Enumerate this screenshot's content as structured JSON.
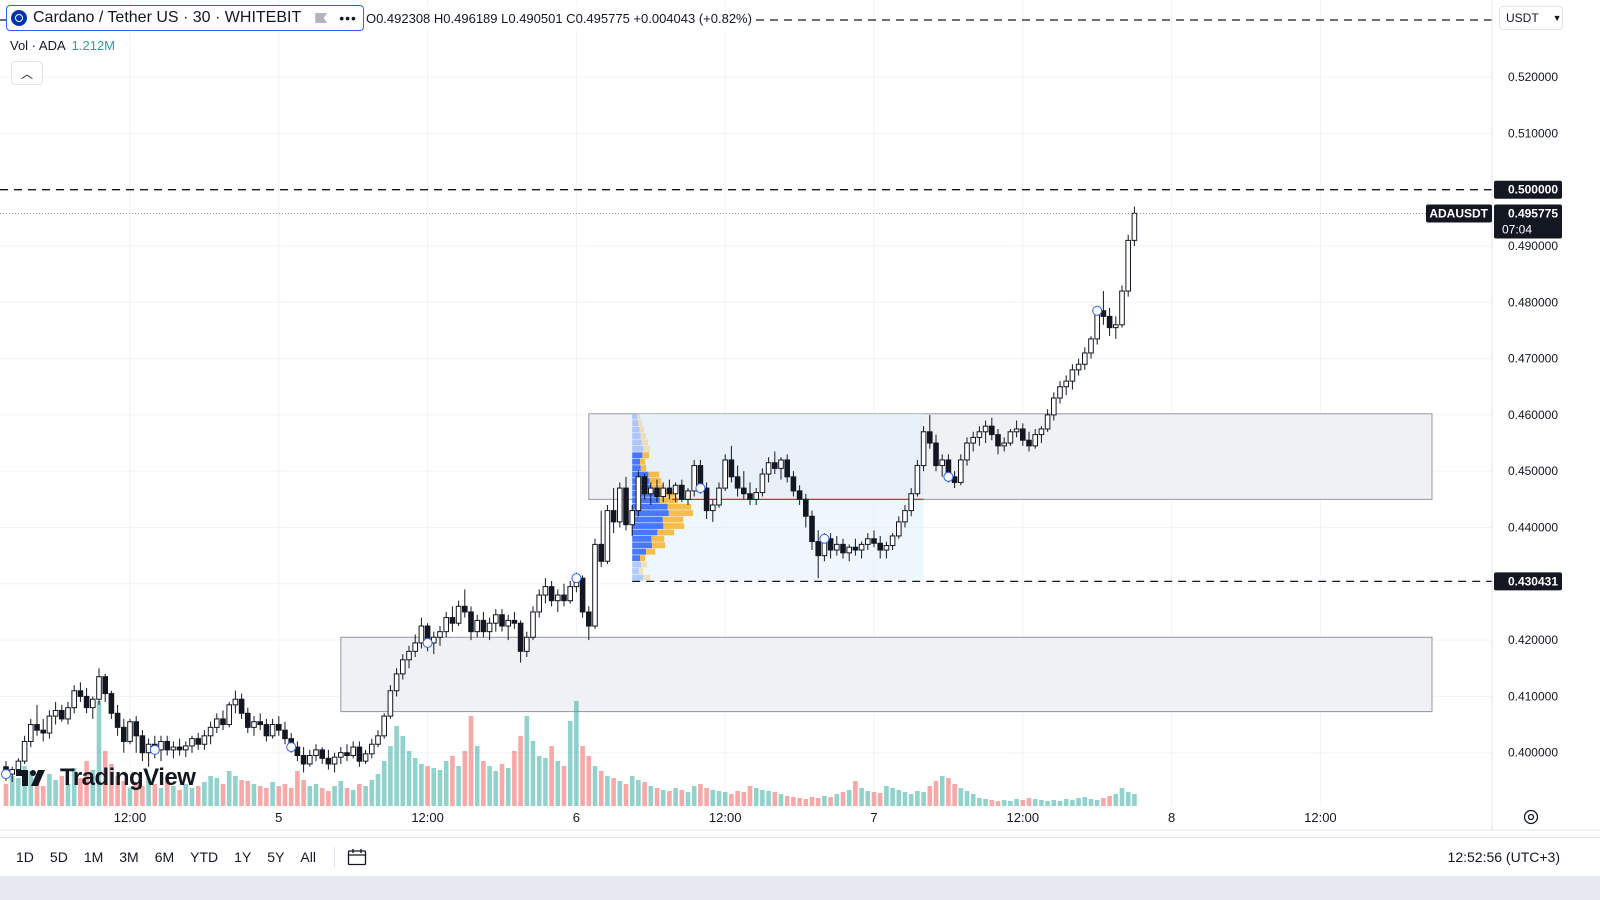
{
  "header": {
    "title": "Cardano / Tether US · 30 · WHITEBIT",
    "ohlc": "O0.492308 H0.496189 L0.490501 C0.495775 +0.004043 (+0.82%)",
    "vol_label": "Vol · ADA",
    "vol_value": "1.212M",
    "currency": "USDT"
  },
  "logo_text": "TradingView",
  "bottom_bar": {
    "timeframes": [
      "1D",
      "5D",
      "1M",
      "3M",
      "6M",
      "YTD",
      "1Y",
      "5Y",
      "All"
    ],
    "clock": "12:52:56 (UTC+3)"
  },
  "colors": {
    "up": "#26a69a",
    "down": "#ef5350",
    "zone": "#e0e3eb",
    "vp_up": "#2962ff",
    "vp_down": "#f7b32b",
    "poc": "#d32f2f",
    "text": "#131722"
  },
  "chart_data": {
    "type": "candlestick",
    "symbol": "ADAUSDT",
    "interval": "30",
    "ylim": [
      0.393,
      0.524
    ],
    "y_ticks": [
      0.4,
      0.41,
      0.42,
      0.43,
      0.44,
      0.45,
      0.46,
      0.47,
      0.48,
      0.49,
      0.51,
      0.52
    ],
    "y_tick_labels": [
      "0.400000",
      "0.410000",
      "0.420000",
      "0.430000",
      "0.440000",
      "0.450000",
      "0.460000",
      "0.470000",
      "0.480000",
      "0.490000",
      "0.510000",
      "0.520000"
    ],
    "x_ticks": [
      {
        "label": "12:00",
        "bar": 20
      },
      {
        "label": "5",
        "bar": 44
      },
      {
        "label": "12:00",
        "bar": 68
      },
      {
        "label": "6",
        "bar": 92
      },
      {
        "label": "12:00",
        "bar": 116
      },
      {
        "label": "7",
        "bar": 140
      },
      {
        "label": "12:00",
        "bar": 164
      },
      {
        "label": "8",
        "bar": 188
      },
      {
        "label": "12:00",
        "bar": 212
      }
    ],
    "last_price": 0.495775,
    "last_price_label": "0.495775",
    "last_price_symbol": "ADAUSDT",
    "countdown": "07:04",
    "horizontal_lines": [
      {
        "value": 0.5,
        "label": "0.500000"
      },
      {
        "value": 0.430431,
        "label": "0.430431"
      }
    ],
    "candles": [
      [
        0.3975,
        0.3985,
        0.395,
        0.3962
      ],
      [
        0.3962,
        0.3975,
        0.3948,
        0.397
      ],
      [
        0.397,
        0.399,
        0.396,
        0.3985
      ],
      [
        0.3985,
        0.403,
        0.398,
        0.402
      ],
      [
        0.402,
        0.406,
        0.401,
        0.405
      ],
      [
        0.405,
        0.4085,
        0.403,
        0.404
      ],
      [
        0.404,
        0.406,
        0.402,
        0.4035
      ],
      [
        0.4035,
        0.4075,
        0.4025,
        0.4065
      ],
      [
        0.4065,
        0.409,
        0.405,
        0.4075
      ],
      [
        0.4075,
        0.4085,
        0.4055,
        0.406
      ],
      [
        0.406,
        0.409,
        0.405,
        0.408
      ],
      [
        0.408,
        0.412,
        0.407,
        0.411
      ],
      [
        0.411,
        0.4125,
        0.409,
        0.41
      ],
      [
        0.41,
        0.4115,
        0.407,
        0.408
      ],
      [
        0.408,
        0.41,
        0.406,
        0.4095
      ],
      [
        0.4095,
        0.415,
        0.4085,
        0.4135
      ],
      [
        0.4135,
        0.414,
        0.409,
        0.4105
      ],
      [
        0.4105,
        0.411,
        0.406,
        0.407
      ],
      [
        0.407,
        0.4085,
        0.403,
        0.4045
      ],
      [
        0.4045,
        0.406,
        0.4,
        0.402
      ],
      [
        0.402,
        0.406,
        0.4015,
        0.4055
      ],
      [
        0.4055,
        0.4065,
        0.4,
        0.403
      ],
      [
        0.403,
        0.404,
        0.3985,
        0.4
      ],
      [
        0.4,
        0.4025,
        0.3975,
        0.4015
      ],
      [
        0.4015,
        0.403,
        0.399,
        0.4005
      ],
      [
        0.4005,
        0.403,
        0.3985,
        0.402
      ],
      [
        0.402,
        0.403,
        0.3995,
        0.4005
      ],
      [
        0.4005,
        0.402,
        0.399,
        0.401
      ],
      [
        0.401,
        0.4025,
        0.3995,
        0.4005
      ],
      [
        0.4005,
        0.402,
        0.3992,
        0.4012
      ],
      [
        0.4012,
        0.403,
        0.4,
        0.4025
      ],
      [
        0.4025,
        0.4035,
        0.4005,
        0.4015
      ],
      [
        0.4015,
        0.404,
        0.4005,
        0.403
      ],
      [
        0.403,
        0.4055,
        0.4015,
        0.4045
      ],
      [
        0.4045,
        0.407,
        0.4035,
        0.406
      ],
      [
        0.406,
        0.4075,
        0.404,
        0.405
      ],
      [
        0.405,
        0.409,
        0.4045,
        0.4085
      ],
      [
        0.4085,
        0.411,
        0.407,
        0.4095
      ],
      [
        0.4095,
        0.4105,
        0.406,
        0.407
      ],
      [
        0.407,
        0.408,
        0.4035,
        0.4045
      ],
      [
        0.4045,
        0.4065,
        0.403,
        0.4055
      ],
      [
        0.4055,
        0.407,
        0.404,
        0.405
      ],
      [
        0.405,
        0.406,
        0.402,
        0.403
      ],
      [
        0.403,
        0.406,
        0.4025,
        0.405
      ],
      [
        0.405,
        0.4065,
        0.403,
        0.404
      ],
      [
        0.404,
        0.4055,
        0.4015,
        0.4025
      ],
      [
        0.4025,
        0.4035,
        0.4,
        0.401
      ],
      [
        0.401,
        0.402,
        0.3985,
        0.3995
      ],
      [
        0.3995,
        0.401,
        0.3965,
        0.398
      ],
      [
        0.398,
        0.4005,
        0.3975,
        0.3995
      ],
      [
        0.3995,
        0.4015,
        0.3985,
        0.4005
      ],
      [
        0.4005,
        0.401,
        0.398,
        0.399
      ],
      [
        0.399,
        0.4005,
        0.397,
        0.398
      ],
      [
        0.398,
        0.4,
        0.3965,
        0.3992
      ],
      [
        0.3992,
        0.401,
        0.398,
        0.4
      ],
      [
        0.4,
        0.4015,
        0.3985,
        0.3995
      ],
      [
        0.3995,
        0.402,
        0.399,
        0.401
      ],
      [
        0.401,
        0.402,
        0.3975,
        0.3985
      ],
      [
        0.3985,
        0.4005,
        0.398,
        0.3998
      ],
      [
        0.3998,
        0.4025,
        0.399,
        0.4015
      ],
      [
        0.4015,
        0.404,
        0.401,
        0.403
      ],
      [
        0.403,
        0.407,
        0.4025,
        0.4065
      ],
      [
        0.4065,
        0.412,
        0.406,
        0.411
      ],
      [
        0.411,
        0.415,
        0.41,
        0.414
      ],
      [
        0.414,
        0.4175,
        0.413,
        0.4165
      ],
      [
        0.4165,
        0.419,
        0.415,
        0.418
      ],
      [
        0.418,
        0.421,
        0.417,
        0.4195
      ],
      [
        0.4195,
        0.424,
        0.4185,
        0.4225
      ],
      [
        0.4225,
        0.423,
        0.418,
        0.4195
      ],
      [
        0.4195,
        0.4215,
        0.4175,
        0.4205
      ],
      [
        0.4205,
        0.4225,
        0.419,
        0.4215
      ],
      [
        0.4215,
        0.425,
        0.4205,
        0.424
      ],
      [
        0.424,
        0.426,
        0.4215,
        0.423
      ],
      [
        0.423,
        0.427,
        0.4225,
        0.426
      ],
      [
        0.426,
        0.429,
        0.424,
        0.425
      ],
      [
        0.425,
        0.426,
        0.42,
        0.4215
      ],
      [
        0.4215,
        0.4245,
        0.4205,
        0.4235
      ],
      [
        0.4235,
        0.425,
        0.4205,
        0.4215
      ],
      [
        0.4215,
        0.424,
        0.42,
        0.423
      ],
      [
        0.423,
        0.4255,
        0.4215,
        0.4245
      ],
      [
        0.4245,
        0.4255,
        0.4215,
        0.4225
      ],
      [
        0.4225,
        0.4245,
        0.42,
        0.4235
      ],
      [
        0.4235,
        0.425,
        0.422,
        0.423
      ],
      [
        0.423,
        0.4235,
        0.416,
        0.418
      ],
      [
        0.418,
        0.4215,
        0.417,
        0.4205
      ],
      [
        0.4205,
        0.426,
        0.42,
        0.425
      ],
      [
        0.425,
        0.429,
        0.424,
        0.428
      ],
      [
        0.428,
        0.431,
        0.4265,
        0.4295
      ],
      [
        0.4295,
        0.4305,
        0.426,
        0.427
      ],
      [
        0.427,
        0.429,
        0.425,
        0.428
      ],
      [
        0.428,
        0.43,
        0.426,
        0.427
      ],
      [
        0.427,
        0.4305,
        0.4265,
        0.4295
      ],
      [
        0.4295,
        0.432,
        0.4285,
        0.431
      ],
      [
        0.431,
        0.4315,
        0.424,
        0.425
      ],
      [
        0.425,
        0.426,
        0.42,
        0.4225
      ],
      [
        0.4225,
        0.438,
        0.422,
        0.437
      ],
      [
        0.437,
        0.443,
        0.433,
        0.434
      ],
      [
        0.434,
        0.444,
        0.4335,
        0.443
      ],
      [
        0.443,
        0.447,
        0.439,
        0.441
      ],
      [
        0.441,
        0.448,
        0.44,
        0.447
      ],
      [
        0.447,
        0.449,
        0.4395,
        0.4405
      ],
      [
        0.4405,
        0.444,
        0.4385,
        0.443
      ],
      [
        0.443,
        0.45,
        0.442,
        0.449
      ],
      [
        0.449,
        0.4495,
        0.445,
        0.446
      ],
      [
        0.446,
        0.448,
        0.444,
        0.447
      ],
      [
        0.447,
        0.4485,
        0.4445,
        0.4455
      ],
      [
        0.4455,
        0.448,
        0.4445,
        0.447
      ],
      [
        0.447,
        0.4485,
        0.445,
        0.446
      ],
      [
        0.446,
        0.448,
        0.4445,
        0.4475
      ],
      [
        0.4475,
        0.4485,
        0.4445,
        0.445
      ],
      [
        0.445,
        0.447,
        0.444,
        0.4465
      ],
      [
        0.4465,
        0.452,
        0.4455,
        0.451
      ],
      [
        0.451,
        0.452,
        0.446,
        0.447
      ],
      [
        0.447,
        0.448,
        0.4415,
        0.443
      ],
      [
        0.443,
        0.445,
        0.441,
        0.444
      ],
      [
        0.444,
        0.448,
        0.4435,
        0.447
      ],
      [
        0.447,
        0.453,
        0.4465,
        0.452
      ],
      [
        0.452,
        0.4545,
        0.448,
        0.449
      ],
      [
        0.449,
        0.451,
        0.4455,
        0.447
      ],
      [
        0.447,
        0.45,
        0.445,
        0.446
      ],
      [
        0.446,
        0.448,
        0.444,
        0.445
      ],
      [
        0.445,
        0.447,
        0.444,
        0.4462
      ],
      [
        0.4462,
        0.4505,
        0.4455,
        0.4495
      ],
      [
        0.4495,
        0.4525,
        0.448,
        0.4515
      ],
      [
        0.4515,
        0.4535,
        0.4495,
        0.4505
      ],
      [
        0.4505,
        0.4525,
        0.4485,
        0.452
      ],
      [
        0.452,
        0.453,
        0.448,
        0.449
      ],
      [
        0.449,
        0.45,
        0.4455,
        0.4465
      ],
      [
        0.4465,
        0.4475,
        0.444,
        0.445
      ],
      [
        0.445,
        0.446,
        0.44,
        0.442
      ],
      [
        0.442,
        0.443,
        0.436,
        0.4375
      ],
      [
        0.4375,
        0.4395,
        0.431,
        0.435
      ],
      [
        0.435,
        0.439,
        0.434,
        0.438
      ],
      [
        0.438,
        0.439,
        0.4345,
        0.436
      ],
      [
        0.436,
        0.4385,
        0.435,
        0.437
      ],
      [
        0.437,
        0.438,
        0.4345,
        0.4355
      ],
      [
        0.4355,
        0.437,
        0.434,
        0.4365
      ],
      [
        0.4365,
        0.438,
        0.435,
        0.436
      ],
      [
        0.436,
        0.4375,
        0.4345,
        0.437
      ],
      [
        0.437,
        0.439,
        0.436,
        0.438
      ],
      [
        0.438,
        0.4395,
        0.4365,
        0.4372
      ],
      [
        0.4372,
        0.4385,
        0.4345,
        0.436
      ],
      [
        0.436,
        0.4375,
        0.4345,
        0.4368
      ],
      [
        0.4368,
        0.439,
        0.436,
        0.4385
      ],
      [
        0.4385,
        0.442,
        0.438,
        0.441
      ],
      [
        0.441,
        0.444,
        0.44,
        0.443
      ],
      [
        0.443,
        0.447,
        0.442,
        0.446
      ],
      [
        0.446,
        0.452,
        0.4455,
        0.451
      ],
      [
        0.451,
        0.458,
        0.45,
        0.457
      ],
      [
        0.457,
        0.46,
        0.454,
        0.455
      ],
      [
        0.455,
        0.4565,
        0.45,
        0.451
      ],
      [
        0.451,
        0.453,
        0.449,
        0.452
      ],
      [
        0.452,
        0.453,
        0.448,
        0.449
      ],
      [
        0.449,
        0.45,
        0.447,
        0.448
      ],
      [
        0.448,
        0.453,
        0.4475,
        0.452
      ],
      [
        0.452,
        0.456,
        0.451,
        0.455
      ],
      [
        0.455,
        0.457,
        0.4535,
        0.456
      ],
      [
        0.456,
        0.458,
        0.4545,
        0.457
      ],
      [
        0.457,
        0.459,
        0.455,
        0.458
      ],
      [
        0.458,
        0.4595,
        0.4555,
        0.4565
      ],
      [
        0.4565,
        0.4575,
        0.453,
        0.4545
      ],
      [
        0.4545,
        0.456,
        0.4535,
        0.455
      ],
      [
        0.455,
        0.4575,
        0.4545,
        0.457
      ],
      [
        0.457,
        0.459,
        0.456,
        0.4575
      ],
      [
        0.4575,
        0.4585,
        0.4545,
        0.4555
      ],
      [
        0.4555,
        0.457,
        0.4535,
        0.4545
      ],
      [
        0.4545,
        0.4575,
        0.454,
        0.4565
      ],
      [
        0.4565,
        0.458,
        0.455,
        0.4575
      ],
      [
        0.4575,
        0.461,
        0.457,
        0.46
      ],
      [
        0.46,
        0.464,
        0.459,
        0.463
      ],
      [
        0.463,
        0.466,
        0.462,
        0.465
      ],
      [
        0.465,
        0.467,
        0.4635,
        0.466
      ],
      [
        0.466,
        0.469,
        0.4645,
        0.468
      ],
      [
        0.468,
        0.47,
        0.467,
        0.469
      ],
      [
        0.469,
        0.472,
        0.468,
        0.471
      ],
      [
        0.471,
        0.474,
        0.47,
        0.4735
      ],
      [
        0.4735,
        0.479,
        0.4725,
        0.4785
      ],
      [
        0.4785,
        0.482,
        0.476,
        0.4775
      ],
      [
        0.4775,
        0.479,
        0.474,
        0.4755
      ],
      [
        0.4755,
        0.4775,
        0.4735,
        0.476
      ],
      [
        0.476,
        0.483,
        0.4755,
        0.482
      ],
      [
        0.482,
        0.492,
        0.481,
        0.491
      ],
      [
        0.491,
        0.497,
        0.49,
        0.4958
      ]
    ],
    "volume": [
      22,
      30,
      28,
      40,
      35,
      25,
      20,
      32,
      26,
      30,
      22,
      38,
      28,
      45,
      36,
      105,
      55,
      42,
      30,
      25,
      18,
      24,
      20,
      28,
      22,
      18,
      25,
      20,
      16,
      22,
      18,
      20,
      24,
      30,
      28,
      22,
      35,
      30,
      26,
      25,
      22,
      20,
      18,
      24,
      20,
      22,
      18,
      35,
      26,
      20,
      22,
      18,
      15,
      20,
      25,
      18,
      16,
      22,
      20,
      26,
      32,
      45,
      60,
      80,
      70,
      55,
      48,
      42,
      40,
      38,
      36,
      45,
      50,
      40,
      55,
      90,
      60,
      45,
      40,
      35,
      42,
      38,
      55,
      70,
      90,
      65,
      50,
      48,
      60,
      45,
      40,
      85,
      105,
      60,
      50,
      40,
      35,
      30,
      28,
      25,
      22,
      30,
      26,
      24,
      20,
      18,
      16,
      15,
      18,
      16,
      14,
      20,
      22,
      18,
      16,
      15,
      14,
      12,
      15,
      14,
      20,
      18,
      16,
      15,
      14,
      12,
      10,
      9,
      8,
      7,
      9,
      8,
      10,
      9,
      12,
      14,
      16,
      25,
      18,
      15,
      14,
      13,
      20,
      18,
      16,
      14,
      12,
      15,
      14,
      20,
      25,
      30,
      28,
      22,
      18,
      15,
      12,
      8,
      7,
      6,
      5,
      6,
      5,
      7,
      6,
      8,
      7,
      6,
      5,
      6,
      5,
      7,
      6,
      8,
      9,
      7,
      6,
      8,
      10,
      12,
      18,
      14,
      12,
      10,
      11,
      9,
      8,
      12,
      10,
      9,
      8,
      10,
      9,
      7,
      8,
      12,
      15,
      18
    ],
    "zones": [
      {
        "from_bar": 94,
        "to_bar": 230,
        "top": 0.4602,
        "bottom": 0.445,
        "kind": "grey-box"
      },
      {
        "from_bar": 54,
        "to_bar": 230,
        "top": 0.4205,
        "bottom": 0.4073,
        "kind": "grey-box"
      },
      {
        "from_bar": 101,
        "to_bar": 148,
        "top": 0.4602,
        "bottom": 0.4305,
        "kind": "volume-profile-range"
      }
    ],
    "volume_profile_poc": 0.445
  }
}
